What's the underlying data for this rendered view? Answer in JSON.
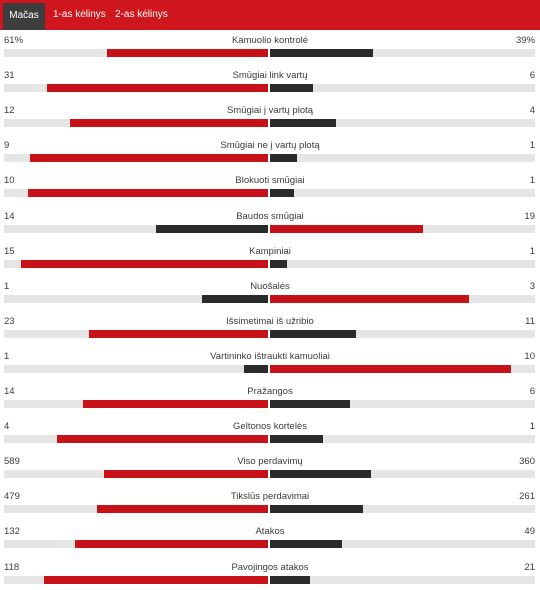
{
  "tabs": [
    {
      "label": "Mačas",
      "active": true
    },
    {
      "label": "1-as kėlinys",
      "active": false
    },
    {
      "label": "2-as kėlinys",
      "active": false
    }
  ],
  "colors": {
    "header": "#d0161d",
    "leader": "#c8121a",
    "trailer": "#2b2b2b",
    "track": "#e5e5e5",
    "active_tab": "#3d3d3d"
  },
  "stats": [
    {
      "name": "Kamuolio kontrolė",
      "home": "61%",
      "away": "39%",
      "home_val": 61,
      "away_val": 39
    },
    {
      "name": "Smūgiai link vartų",
      "home": "31",
      "away": "6",
      "home_val": 31,
      "away_val": 6
    },
    {
      "name": "Smūgiai į vartų plotą",
      "home": "12",
      "away": "4",
      "home_val": 12,
      "away_val": 4
    },
    {
      "name": "Smūgiai ne į vartų plotą",
      "home": "9",
      "away": "1",
      "home_val": 9,
      "away_val": 1
    },
    {
      "name": "Blokuoti smūgiai",
      "home": "10",
      "away": "1",
      "home_val": 10,
      "away_val": 1
    },
    {
      "name": "Baudos smūgiai",
      "home": "14",
      "away": "19",
      "home_val": 14,
      "away_val": 19
    },
    {
      "name": "Kampiniai",
      "home": "15",
      "away": "1",
      "home_val": 15,
      "away_val": 1
    },
    {
      "name": "Nuošalės",
      "home": "1",
      "away": "3",
      "home_val": 1,
      "away_val": 3
    },
    {
      "name": "Išsimetimai iš užribio",
      "home": "23",
      "away": "11",
      "home_val": 23,
      "away_val": 11
    },
    {
      "name": "Vartininko ištraukti kamuoliai",
      "home": "1",
      "away": "10",
      "home_val": 1,
      "away_val": 10
    },
    {
      "name": "Pražangos",
      "home": "14",
      "away": "6",
      "home_val": 14,
      "away_val": 6
    },
    {
      "name": "Geltonos kortelės",
      "home": "4",
      "away": "1",
      "home_val": 4,
      "away_val": 1
    },
    {
      "name": "Viso perdavimų",
      "home": "589",
      "away": "360",
      "home_val": 589,
      "away_val": 360
    },
    {
      "name": "Tikslūs perdavimai",
      "home": "479",
      "away": "261",
      "home_val": 479,
      "away_val": 261
    },
    {
      "name": "Atakos",
      "home": "132",
      "away": "49",
      "home_val": 132,
      "away_val": 49
    },
    {
      "name": "Pavojingos atakos",
      "home": "118",
      "away": "21",
      "home_val": 118,
      "away_val": 21
    }
  ]
}
